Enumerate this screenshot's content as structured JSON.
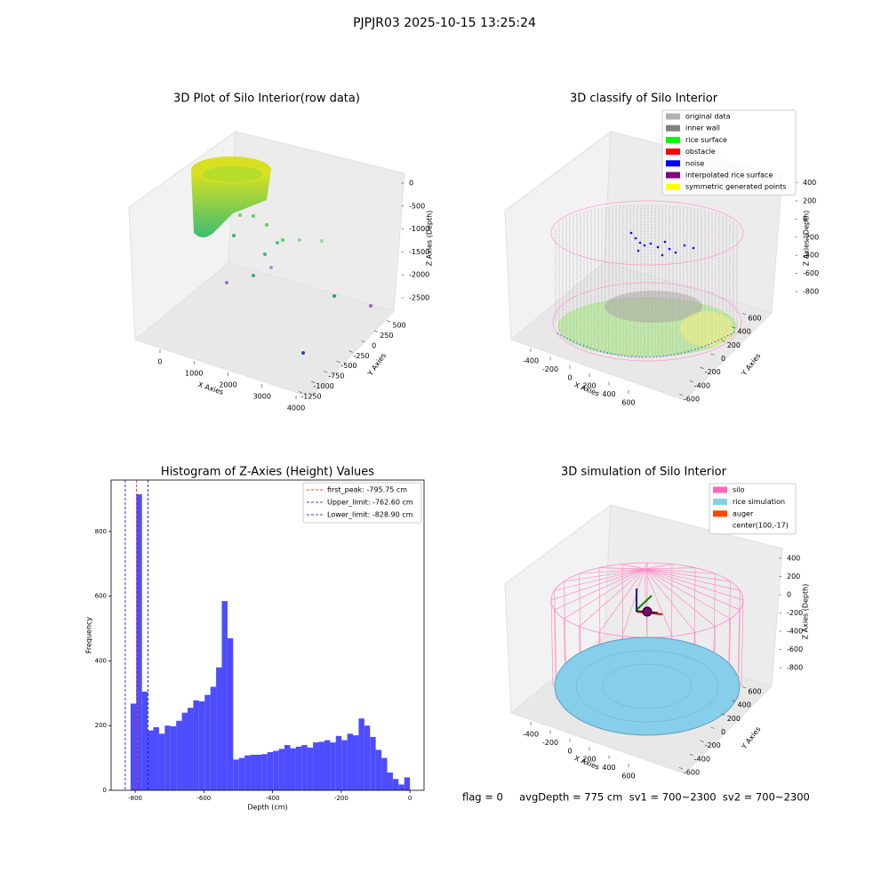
{
  "title": "PJPJR03 2025-10-15 13:25:24",
  "footer": "flag = 0     avgDepth = 775 cm  sv1 = 700~2300  sv2 = 700~2300",
  "chart_data": [
    {
      "type": "scatter3d",
      "title": "3D Plot of Silo Interior(row data)",
      "xlabel": "X Axies",
      "ylabel": "Y Axies",
      "zlabel": "Z Axies (Depth)",
      "xlim": [
        -700,
        4300
      ],
      "xticks": [
        0,
        1000,
        2000,
        3000,
        4000
      ],
      "ylim": [
        -1400,
        650
      ],
      "yticks": [
        500,
        250,
        0,
        -250,
        -500,
        -750,
        -1000,
        -1250
      ],
      "zlim": [
        -2800,
        300
      ],
      "zticks": [
        0,
        -500,
        -1000,
        -1500,
        -2000,
        -2500
      ]
    },
    {
      "type": "scatter3d",
      "title": "3D classify of Silo Interior",
      "xlabel": "X Axies",
      "ylabel": "Y Axies",
      "zlabel": "Z Axies (Depth)",
      "xlim": [
        -560,
        760
      ],
      "xticks": [
        -400,
        -200,
        0,
        200,
        400,
        600
      ],
      "ylim": [
        -720,
        720
      ],
      "yticks": [
        600,
        400,
        200,
        0,
        -200,
        -400,
        -600
      ],
      "zlim": [
        -950,
        480
      ],
      "zticks": [
        400,
        200,
        0,
        -200,
        -400,
        -600,
        -800
      ],
      "legend": [
        {
          "name": "original data",
          "color": "#b0b0b0"
        },
        {
          "name": "inner wall",
          "color": "#808080"
        },
        {
          "name": "rice surface",
          "color": "#00ff00"
        },
        {
          "name": "obstacle",
          "color": "#ff0000"
        },
        {
          "name": "noise",
          "color": "#0000ff"
        },
        {
          "name": "interpolated rice surface",
          "color": "#800080"
        },
        {
          "name": "symmetric generated points",
          "color": "#ffff00"
        }
      ]
    },
    {
      "type": "histogram",
      "title": "Histogram of Z-Axies (Height) Values",
      "xlabel": "Depth (cm)",
      "ylabel": "Frequency",
      "color": "#4d4dff",
      "bins": [
        -813.4,
        -796.8,
        -780.2,
        -763.6,
        -747.0,
        -730.4,
        -713.8,
        -697.2,
        -680.6,
        -664.0,
        -647.4,
        -630.8,
        -614.2,
        -597.6,
        -581.0,
        -564.4,
        -547.8,
        -531.2,
        -514.6,
        -498.0,
        -481.4,
        -464.8,
        -448.2,
        -431.6,
        -415.0,
        -398.4,
        -381.8,
        -365.2,
        -348.6,
        -332.0,
        -315.4,
        -298.8,
        -282.2,
        -265.6,
        -249.0,
        -232.4,
        -215.8,
        -199.2,
        -182.6,
        -166.0,
        -149.4,
        -132.8,
        -116.2,
        -99.6,
        -83.0,
        -66.4,
        -49.8,
        -33.2,
        -16.6,
        0.0
      ],
      "values": [
        268,
        915,
        305,
        185,
        195,
        175,
        200,
        198,
        215,
        240,
        255,
        278,
        275,
        295,
        320,
        380,
        585,
        470,
        95,
        100,
        108,
        110,
        110,
        112,
        118,
        122,
        128,
        140,
        130,
        135,
        140,
        132,
        148,
        150,
        155,
        148,
        168,
        155,
        175,
        170,
        222,
        200,
        165,
        125,
        100,
        55,
        35,
        18,
        40
      ],
      "xlim": [
        -870,
        41
      ],
      "xticks": [
        -800,
        -600,
        -400,
        -200,
        0
      ],
      "ylim": [
        0,
        959
      ],
      "yticks": [
        0,
        200,
        400,
        600,
        800
      ],
      "vlines": [
        {
          "label": "first_peak: -795.75 cm",
          "value": -795.75,
          "color": "#ff0000"
        },
        {
          "label": "Upper_limit: -762.60 cm",
          "value": -762.6,
          "color": "#0000ff"
        },
        {
          "label": "Lower_limit: -828.90 cm",
          "value": -828.9,
          "color": "#0000ff"
        }
      ],
      "legend_position": "upper right"
    },
    {
      "type": "scatter3d",
      "title": "3D simulation of Silo Interior",
      "xlabel": "X Axies",
      "ylabel": "Y Axies",
      "zlabel": "Z Axies (Depth)",
      "xlim": [
        -560,
        760
      ],
      "xticks": [
        -400,
        -200,
        0,
        200,
        400,
        600
      ],
      "ylim": [
        -720,
        720
      ],
      "yticks": [
        600,
        400,
        200,
        0,
        -200,
        -400,
        -600
      ],
      "zlim": [
        -950,
        560
      ],
      "zticks": [
        400,
        200,
        0,
        -200,
        -400,
        -600,
        -800
      ],
      "legend": [
        {
          "name": "silo",
          "color": "#ff69b4"
        },
        {
          "name": "rice simulation",
          "color": "#87ceeb"
        },
        {
          "name": "auger",
          "color": "#ff4500"
        },
        {
          "name": "center(100,-17)"
        }
      ]
    }
  ]
}
